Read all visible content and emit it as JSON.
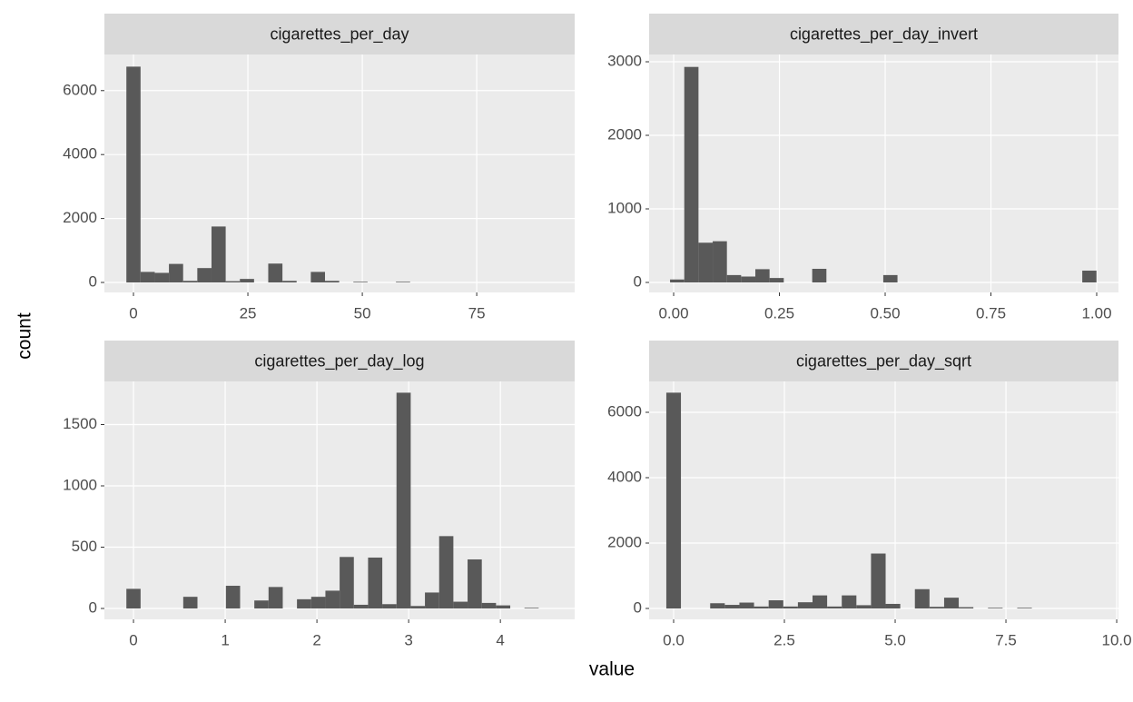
{
  "xlabel": "value",
  "ylabel": "count",
  "chart_data": [
    {
      "type": "histogram",
      "title": "cigarettes_per_day",
      "color": "#595959",
      "grid": true,
      "bins": [
        -1.55,
        1.55,
        4.65,
        7.75,
        10.85,
        13.95,
        17.05,
        20.15,
        23.25,
        26.35,
        29.45,
        32.55,
        35.65,
        38.75,
        41.85,
        44.95,
        48.05,
        51.15,
        54.25,
        57.35,
        60.45,
        63.55,
        66.65,
        69.75,
        72.85,
        75.95,
        79.05,
        82.15,
        85.25,
        88.35,
        91.45
      ],
      "values": [
        6750,
        330,
        300,
        580,
        50,
        450,
        1750,
        40,
        110,
        0,
        590,
        50,
        0,
        330,
        50,
        0,
        20,
        0,
        0,
        20,
        0,
        0,
        0,
        0,
        0,
        0,
        0,
        0,
        0,
        0
      ],
      "xlim": [
        -6.35,
        96.4
      ],
      "xticks": [
        0,
        25,
        50,
        75
      ],
      "ylim": [
        -312,
        7130
      ],
      "yticks": [
        0,
        2000,
        4000,
        6000
      ]
    },
    {
      "type": "histogram",
      "title": "cigarettes_per_day_invert",
      "color": "#595959",
      "grid": true,
      "bins": [
        -0.0085,
        0.0251,
        0.0587,
        0.0923,
        0.1259,
        0.1595,
        0.1931,
        0.2267,
        0.2603,
        0.2939,
        0.3275,
        0.3611,
        0.3947,
        0.4283,
        0.4619,
        0.4955,
        0.5291,
        0.5627,
        0.5963,
        0.6299,
        0.6635,
        0.6971,
        0.7307,
        0.7643,
        0.7979,
        0.8315,
        0.8651,
        0.8987,
        0.9323,
        0.9659,
        0.9995
      ],
      "values": [
        40,
        2930,
        540,
        560,
        100,
        80,
        180,
        60,
        0,
        0,
        185,
        0,
        0,
        0,
        0,
        100,
        0,
        0,
        0,
        0,
        0,
        0,
        0,
        0,
        0,
        0,
        0,
        0,
        0,
        160
      ],
      "xlim": [
        -0.058,
        1.0515
      ],
      "xticks": [
        {
          "value": 0,
          "label": "0.00"
        },
        {
          "value": 0.25,
          "label": "0.25"
        },
        {
          "value": 0.5,
          "label": "0.50"
        },
        {
          "value": 0.75,
          "label": "0.75"
        },
        {
          "value": 1,
          "label": "1.00"
        }
      ],
      "ylim": [
        -136,
        3099
      ],
      "yticks": [
        0,
        1000,
        2000,
        3000
      ]
    },
    {
      "type": "histogram",
      "title": "cigarettes_per_day_log",
      "color": "#595959",
      "grid": true,
      "bins": [
        -0.0775,
        0.0775,
        0.2325,
        0.3875,
        0.5425,
        0.6975,
        0.8525,
        1.0075,
        1.1625,
        1.3175,
        1.4725,
        1.6275,
        1.7825,
        1.9375,
        2.0925,
        2.2475,
        2.4025,
        2.5575,
        2.7125,
        2.8675,
        3.0225,
        3.1775,
        3.3325,
        3.4875,
        3.6425,
        3.7975,
        3.9525,
        4.1075,
        4.2625,
        4.4175,
        4.5725
      ],
      "values": [
        160,
        0,
        0,
        0,
        95,
        0,
        0,
        185,
        0,
        65,
        175,
        0,
        75,
        95,
        145,
        420,
        30,
        415,
        35,
        1760,
        20,
        130,
        590,
        55,
        400,
        45,
        25,
        0,
        5,
        0
      ],
      "xlim": [
        -0.317,
        4.81
      ],
      "xticks": [
        0,
        1,
        2,
        3,
        4
      ],
      "ylim": [
        -89,
        1852
      ],
      "yticks": [
        0,
        500,
        1000,
        1500
      ]
    },
    {
      "type": "histogram",
      "title": "cigarettes_per_day_sqrt",
      "color": "#595959",
      "grid": true,
      "bins": [
        -0.165,
        0.165,
        0.495,
        0.825,
        1.155,
        1.485,
        1.815,
        2.145,
        2.475,
        2.805,
        3.135,
        3.465,
        3.795,
        4.125,
        4.455,
        4.785,
        5.115,
        5.445,
        5.775,
        6.105,
        6.435,
        6.765,
        7.095,
        7.425,
        7.755,
        8.085,
        8.415,
        8.745,
        9.075,
        9.405,
        9.735
      ],
      "values": [
        6600,
        0,
        0,
        160,
        110,
        180,
        60,
        250,
        60,
        190,
        400,
        60,
        400,
        100,
        1680,
        140,
        0,
        590,
        50,
        330,
        40,
        0,
        20,
        0,
        20,
        0,
        0,
        0,
        0,
        0
      ],
      "xlim": [
        -0.553,
        10.04
      ],
      "xticks": [
        {
          "value": 0,
          "label": "0.0"
        },
        {
          "value": 2.5,
          "label": "2.5"
        },
        {
          "value": 5,
          "label": "5.0"
        },
        7.5,
        {
          "value": 10,
          "label": "10.0"
        }
      ],
      "ylim": [
        -333,
        6944
      ],
      "yticks": [
        0,
        2000,
        4000,
        6000
      ]
    }
  ]
}
